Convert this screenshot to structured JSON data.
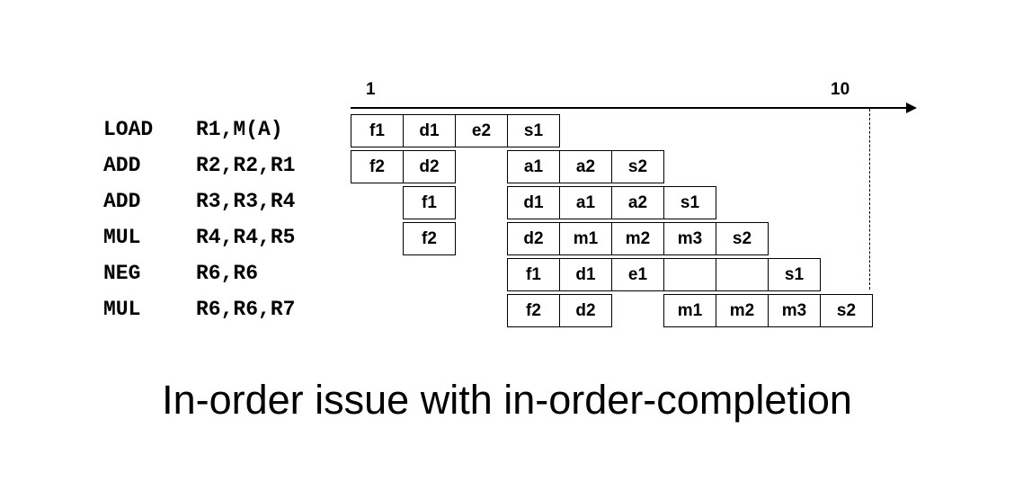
{
  "axis": {
    "start_label": "1",
    "end_label": "10"
  },
  "instructions": [
    {
      "op": "LOAD",
      "args": "R1,M(A)"
    },
    {
      "op": "ADD",
      "args": "R2,R2,R1"
    },
    {
      "op": "ADD",
      "args": "R3,R3,R4"
    },
    {
      "op": "MUL",
      "args": "R4,R4,R5"
    },
    {
      "op": "NEG",
      "args": "R6,R6"
    },
    {
      "op": "MUL",
      "args": "R6,R6,R7"
    }
  ],
  "pipeline": [
    [
      {
        "cycle": 1,
        "stage": "f1"
      },
      {
        "cycle": 2,
        "stage": "d1"
      },
      {
        "cycle": 3,
        "stage": "e2"
      },
      {
        "cycle": 4,
        "stage": "s1"
      }
    ],
    [
      {
        "cycle": 1,
        "stage": "f2"
      },
      {
        "cycle": 2,
        "stage": "d2"
      },
      {
        "cycle": 4,
        "stage": "a1"
      },
      {
        "cycle": 5,
        "stage": "a2"
      },
      {
        "cycle": 6,
        "stage": "s2"
      }
    ],
    [
      {
        "cycle": 2,
        "stage": "f1"
      },
      {
        "cycle": 4,
        "stage": "d1"
      },
      {
        "cycle": 5,
        "stage": "a1"
      },
      {
        "cycle": 6,
        "stage": "a2"
      },
      {
        "cycle": 7,
        "stage": "s1"
      }
    ],
    [
      {
        "cycle": 2,
        "stage": "f2"
      },
      {
        "cycle": 4,
        "stage": "d2"
      },
      {
        "cycle": 5,
        "stage": "m1"
      },
      {
        "cycle": 6,
        "stage": "m2"
      },
      {
        "cycle": 7,
        "stage": "m3"
      },
      {
        "cycle": 8,
        "stage": "s2"
      }
    ],
    [
      {
        "cycle": 4,
        "stage": "f1"
      },
      {
        "cycle": 5,
        "stage": "d1"
      },
      {
        "cycle": 6,
        "stage": "e1"
      },
      {
        "cycle": 7,
        "stage": ""
      },
      {
        "cycle": 8,
        "stage": ""
      },
      {
        "cycle": 9,
        "stage": "s1"
      }
    ],
    [
      {
        "cycle": 4,
        "stage": "f2"
      },
      {
        "cycle": 5,
        "stage": "d2"
      },
      {
        "cycle": 7,
        "stage": "m1"
      },
      {
        "cycle": 8,
        "stage": "m2"
      },
      {
        "cycle": 9,
        "stage": "m3"
      },
      {
        "cycle": 10,
        "stage": "s2"
      }
    ]
  ],
  "caption": "In-order issue with in-order-completion"
}
